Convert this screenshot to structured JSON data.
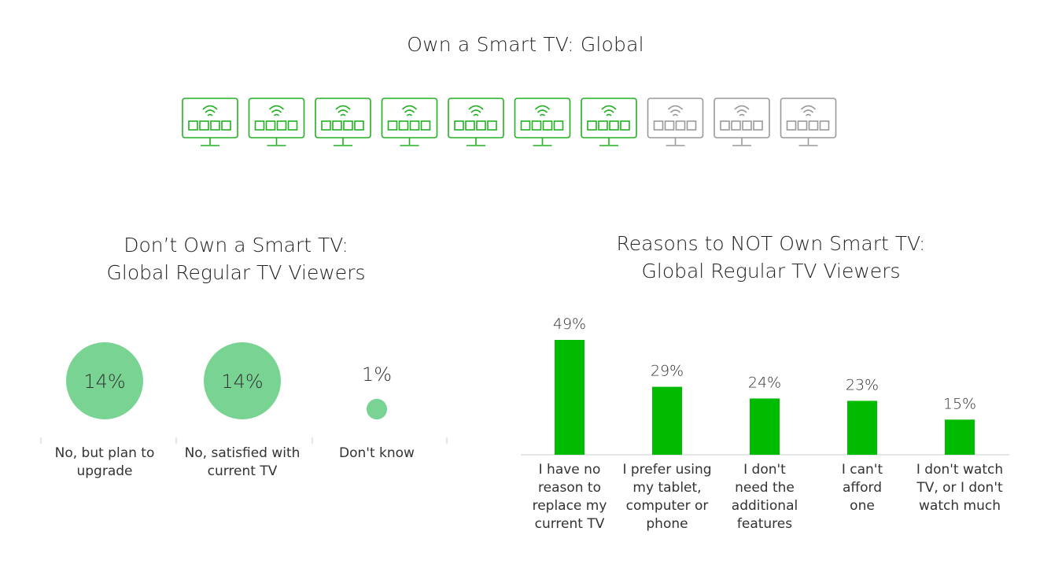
{
  "header": {
    "title": "Own a Smart TV: Global"
  },
  "icon_row": {
    "icon": "smart-tv-icon",
    "total": 10,
    "highlighted": 7,
    "colors": {
      "on": "#22B022",
      "off": "#9A9A9A"
    }
  },
  "left_chart": {
    "title_line1": "Don’t Own a Smart TV:",
    "title_line2": "Global Regular TV Viewers",
    "items": [
      {
        "value_label": "14%",
        "label_line1": "No, but plan to",
        "label_line2": "upgrade"
      },
      {
        "value_label": "14%",
        "label_line1": "No, satisfied with",
        "label_line2": "current TV"
      },
      {
        "value_label": "1%",
        "label_line1": "Don't know",
        "label_line2": ""
      }
    ]
  },
  "right_chart": {
    "title_line1": "Reasons to NOT Own Smart TV:",
    "title_line2": "Global Regular TV Viewers",
    "value_labels": [
      "49%",
      "29%",
      "24%",
      "23%",
      "15%"
    ],
    "category_lines": [
      [
        "I have no",
        "reason to",
        "replace my",
        "current TV"
      ],
      [
        "I prefer using",
        "my tablet,",
        "computer or",
        "phone"
      ],
      [
        "I don't",
        "need the",
        "additional",
        "features"
      ],
      [
        "I can't",
        "afford",
        "one"
      ],
      [
        "I don't watch",
        "TV, or I don't",
        "watch much"
      ]
    ]
  },
  "chart_data": [
    {
      "type": "bubble",
      "title": "Don’t Own a Smart TV: Global Regular TV Viewers",
      "categories": [
        "No, but plan to upgrade",
        "No, satisfied with current TV",
        "Don't know"
      ],
      "values": [
        14,
        14,
        1
      ],
      "unit": "%",
      "color": "#79D494"
    },
    {
      "type": "bar",
      "title": "Reasons to NOT Own Smart TV: Global Regular TV Viewers",
      "categories": [
        "I have no reason to replace my current TV",
        "I prefer using my tablet, computer or phone",
        "I don't need the additional features",
        "I can't afford one",
        "I don't watch TV, or I don't watch much"
      ],
      "values": [
        49,
        29,
        24,
        23,
        15
      ],
      "unit": "%",
      "color": "#00BB00",
      "ylim": [
        0,
        49
      ],
      "grid": false
    }
  ]
}
